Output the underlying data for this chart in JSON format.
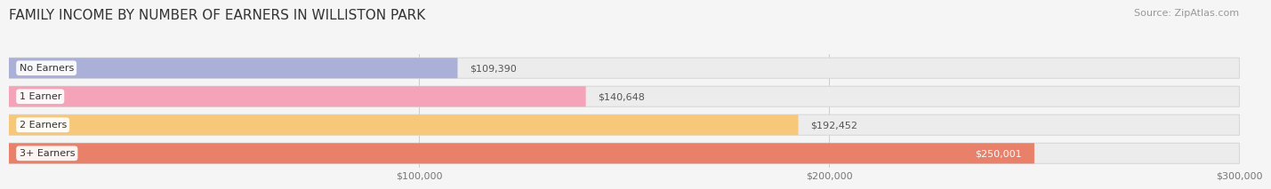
{
  "title": "FAMILY INCOME BY NUMBER OF EARNERS IN WILLISTON PARK",
  "source": "Source: ZipAtlas.com",
  "categories": [
    "No Earners",
    "1 Earner",
    "2 Earners",
    "3+ Earners"
  ],
  "values": [
    109390,
    140648,
    192452,
    250001
  ],
  "bar_colors": [
    "#abb0d8",
    "#f4a3b8",
    "#f8c87a",
    "#e8806a"
  ],
  "value_labels": [
    "$109,390",
    "$140,648",
    "$192,452",
    "$250,001"
  ],
  "value_label_inside": [
    false,
    false,
    false,
    true
  ],
  "xlim_min": 0,
  "xlim_max": 300000,
  "xticks": [
    100000,
    200000,
    300000
  ],
  "xtick_labels": [
    "$100,000",
    "$200,000",
    "$300,000"
  ],
  "background_color": "#f5f5f5",
  "bar_bg_color": "#ececec",
  "title_fontsize": 11,
  "source_fontsize": 8,
  "label_fontsize": 8,
  "value_fontsize": 8,
  "bar_height": 0.72,
  "bar_gap": 0.28
}
